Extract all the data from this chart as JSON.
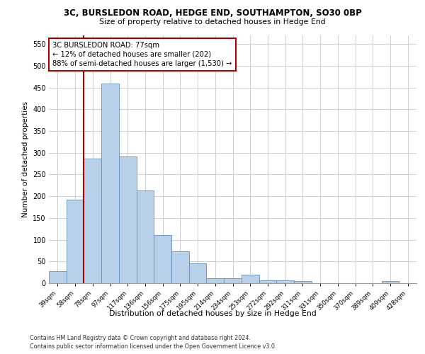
{
  "title1": "3C, BURSLEDON ROAD, HEDGE END, SOUTHAMPTON, SO30 0BP",
  "title2": "Size of property relative to detached houses in Hedge End",
  "xlabel": "Distribution of detached houses by size in Hedge End",
  "ylabel": "Number of detached properties",
  "categories": [
    "39sqm",
    "58sqm",
    "78sqm",
    "97sqm",
    "117sqm",
    "136sqm",
    "156sqm",
    "175sqm",
    "195sqm",
    "214sqm",
    "234sqm",
    "253sqm",
    "272sqm",
    "292sqm",
    "311sqm",
    "331sqm",
    "350sqm",
    "370sqm",
    "389sqm",
    "409sqm",
    "428sqm"
  ],
  "values": [
    28,
    192,
    287,
    460,
    291,
    213,
    110,
    73,
    46,
    12,
    11,
    20,
    7,
    6,
    5,
    0,
    0,
    0,
    0,
    5,
    0
  ],
  "bar_color": "#b8d0ea",
  "bar_edge_color": "#6090b8",
  "vline_index": 2,
  "vline_color": "#aa0000",
  "annotation_text": "3C BURSLEDON ROAD: 77sqm\n← 12% of detached houses are smaller (202)\n88% of semi-detached houses are larger (1,530) →",
  "annotation_box_color": "#ffffff",
  "annotation_box_edge": "#aa0000",
  "ylim": [
    0,
    570
  ],
  "yticks": [
    0,
    50,
    100,
    150,
    200,
    250,
    300,
    350,
    400,
    450,
    500,
    550
  ],
  "footer1": "Contains HM Land Registry data © Crown copyright and database right 2024.",
  "footer2": "Contains public sector information licensed under the Open Government Licence v3.0.",
  "background_color": "#ffffff",
  "grid_color": "#c8c8d0"
}
